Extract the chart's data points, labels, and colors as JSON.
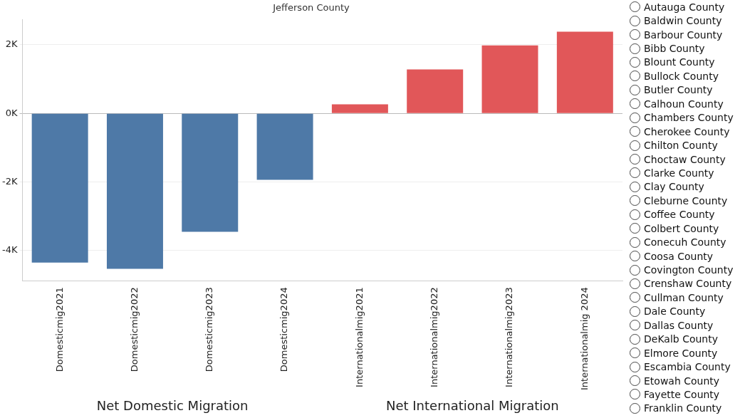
{
  "chart_data": [
    {
      "type": "bar",
      "title": "Jefferson County",
      "categories": [
        "Domesticmig2021",
        "Domesticmig2022",
        "Domesticmig2023",
        "Domesticmig2024",
        "Internationalmig2021",
        "Internationalmig2022",
        "Internationalmig2023",
        "Internationalmig 2024"
      ],
      "values": [
        -4350,
        -4530,
        -3450,
        -1940,
        260,
        1280,
        1980,
        2380
      ],
      "colors": [
        "#4e79a7",
        "#4e79a7",
        "#4e79a7",
        "#4e79a7",
        "#e15759",
        "#e15759",
        "#e15759",
        "#e15759"
      ],
      "ylim": [
        -4880,
        2730
      ],
      "yticks": [
        {
          "value": -4000,
          "label": "-4K"
        },
        {
          "value": -2000,
          "label": "-2K"
        },
        {
          "value": 0,
          "label": "0K"
        },
        {
          "value": 2000,
          "label": "2K"
        }
      ],
      "grid": "y",
      "legend": false,
      "annotations": [
        "Net Domestic Migration",
        "Net International Migration"
      ]
    },
    {
      "type": "other",
      "annotations": [
        "Autauga County",
        "Baldwin County",
        "Barbour County",
        "Bibb County",
        "Blount County",
        "Bullock County",
        "Butler County",
        "Calhoun County",
        "Chambers County",
        "Cherokee County",
        "Chilton County",
        "Choctaw County",
        "Clarke County",
        "Clay County",
        "Cleburne County",
        "Coffee County",
        "Colbert County",
        "Conecuh County",
        "Coosa County",
        "Covington County",
        "Crenshaw County",
        "Cullman County",
        "Dale County",
        "Dallas County",
        "DeKalb County",
        "Elmore County",
        "Escambia County",
        "Etowah County",
        "Fayette County",
        "Franklin County"
      ]
    }
  ]
}
